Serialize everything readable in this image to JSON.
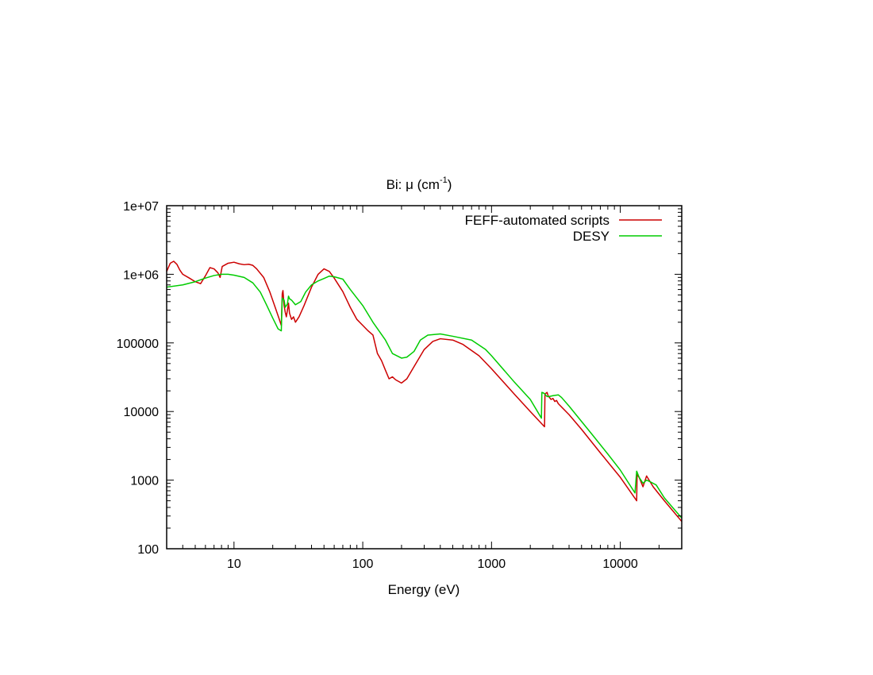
{
  "chart_data": {
    "type": "line",
    "title": "Bi: μ (cm",
    "title_sup": "-1",
    "title_tail": ")",
    "xlabel": "Energy (eV)",
    "ylabel": "",
    "xscale": "log",
    "yscale": "log",
    "xlim": [
      3,
      30000
    ],
    "ylim": [
      100,
      10000000
    ],
    "grid": false,
    "legend_position": "top-right",
    "x_tick_labels": [
      {
        "value": 10,
        "label": "10"
      },
      {
        "value": 100,
        "label": "100"
      },
      {
        "value": 1000,
        "label": "1000"
      },
      {
        "value": 10000,
        "label": "10000"
      }
    ],
    "y_tick_labels": [
      {
        "value": 100,
        "label": "100"
      },
      {
        "value": 1000,
        "label": "1000"
      },
      {
        "value": 10000,
        "label": "10000"
      },
      {
        "value": 100000,
        "label": "100000"
      },
      {
        "value": 1000000,
        "label": "1e+06"
      },
      {
        "value": 10000000,
        "label": "1e+07"
      }
    ],
    "series": [
      {
        "name": "FEFF-automated scripts",
        "color": "#cc0000",
        "points": [
          [
            3.0,
            1100000
          ],
          [
            3.2,
            1450000
          ],
          [
            3.4,
            1550000
          ],
          [
            3.6,
            1400000
          ],
          [
            3.8,
            1150000
          ],
          [
            4.0,
            1000000
          ],
          [
            4.5,
            880000
          ],
          [
            5.0,
            780000
          ],
          [
            5.5,
            730000
          ],
          [
            6.0,
            950000
          ],
          [
            6.5,
            1250000
          ],
          [
            7.0,
            1200000
          ],
          [
            7.5,
            1050000
          ],
          [
            7.8,
            900000
          ],
          [
            8.1,
            1300000
          ],
          [
            9.0,
            1450000
          ],
          [
            10.0,
            1500000
          ],
          [
            11.0,
            1420000
          ],
          [
            12.0,
            1380000
          ],
          [
            13.0,
            1400000
          ],
          [
            14.0,
            1350000
          ],
          [
            15.0,
            1200000
          ],
          [
            17.0,
            900000
          ],
          [
            19.0,
            550000
          ],
          [
            21.0,
            320000
          ],
          [
            22.5,
            220000
          ],
          [
            23.3,
            180000
          ],
          [
            23.7,
            520000
          ],
          [
            24.0,
            580000
          ],
          [
            24.5,
            350000
          ],
          [
            25.0,
            280000
          ],
          [
            25.5,
            240000
          ],
          [
            26.0,
            300000
          ],
          [
            26.5,
            380000
          ],
          [
            27.0,
            270000
          ],
          [
            28.0,
            220000
          ],
          [
            29.0,
            240000
          ],
          [
            30.0,
            200000
          ],
          [
            32.0,
            240000
          ],
          [
            35.0,
            350000
          ],
          [
            40.0,
            650000
          ],
          [
            45.0,
            1000000
          ],
          [
            50.0,
            1200000
          ],
          [
            55.0,
            1100000
          ],
          [
            60.0,
            880000
          ],
          [
            70.0,
            560000
          ],
          [
            80.0,
            330000
          ],
          [
            90.0,
            220000
          ],
          [
            100.0,
            180000
          ],
          [
            110.0,
            150000
          ],
          [
            120.0,
            130000
          ],
          [
            130.0,
            70000
          ],
          [
            140.0,
            55000
          ],
          [
            150.0,
            40000
          ],
          [
            160.0,
            30000
          ],
          [
            170.0,
            32000
          ],
          [
            180.0,
            29000
          ],
          [
            200.0,
            26000
          ],
          [
            220.0,
            30000
          ],
          [
            250.0,
            45000
          ],
          [
            300.0,
            80000
          ],
          [
            350.0,
            105000
          ],
          [
            400.0,
            115000
          ],
          [
            500.0,
            110000
          ],
          [
            600.0,
            95000
          ],
          [
            800.0,
            65000
          ],
          [
            1000.0,
            42000
          ],
          [
            1500.0,
            18000
          ],
          [
            2000.0,
            10000
          ],
          [
            2580.0,
            6000
          ],
          [
            2600.0,
            18000
          ],
          [
            2700.0,
            19000
          ],
          [
            2750.0,
            17000
          ],
          [
            2900.0,
            15000
          ],
          [
            3000.0,
            15500
          ],
          [
            3100.0,
            14000
          ],
          [
            3200.0,
            14500
          ],
          [
            3300.0,
            13000
          ],
          [
            4000.0,
            9000
          ],
          [
            5000.0,
            5500
          ],
          [
            7000.0,
            2500
          ],
          [
            10000.0,
            1100
          ],
          [
            13400.0,
            500
          ],
          [
            13500.0,
            1200
          ],
          [
            14000.0,
            1100
          ],
          [
            15000.0,
            800
          ],
          [
            16000.0,
            1150
          ],
          [
            18000.0,
            800
          ],
          [
            22000.0,
            500
          ],
          [
            30000.0,
            250
          ]
        ]
      },
      {
        "name": "DESY",
        "color": "#00cc00",
        "points": [
          [
            3.0,
            650000
          ],
          [
            4.0,
            700000
          ],
          [
            5.0,
            780000
          ],
          [
            6.0,
            880000
          ],
          [
            7.0,
            960000
          ],
          [
            8.0,
            1000000
          ],
          [
            9.0,
            1000000
          ],
          [
            10.0,
            970000
          ],
          [
            12.0,
            900000
          ],
          [
            14.0,
            750000
          ],
          [
            16.0,
            550000
          ],
          [
            18.0,
            350000
          ],
          [
            20.0,
            230000
          ],
          [
            22.0,
            160000
          ],
          [
            23.3,
            150000
          ],
          [
            23.7,
            450000
          ],
          [
            24.5,
            420000
          ],
          [
            25.0,
            330000
          ],
          [
            26.0,
            370000
          ],
          [
            26.5,
            480000
          ],
          [
            27.0,
            440000
          ],
          [
            28.0,
            420000
          ],
          [
            30.0,
            360000
          ],
          [
            33.0,
            400000
          ],
          [
            36.0,
            550000
          ],
          [
            40.0,
            700000
          ],
          [
            45.0,
            800000
          ],
          [
            50.0,
            870000
          ],
          [
            55.0,
            940000
          ],
          [
            60.0,
            920000
          ],
          [
            70.0,
            850000
          ],
          [
            80.0,
            600000
          ],
          [
            100.0,
            350000
          ],
          [
            120.0,
            200000
          ],
          [
            150.0,
            110000
          ],
          [
            170.0,
            70000
          ],
          [
            200.0,
            60000
          ],
          [
            220.0,
            62000
          ],
          [
            250.0,
            75000
          ],
          [
            280.0,
            110000
          ],
          [
            320.0,
            130000
          ],
          [
            400.0,
            135000
          ],
          [
            500.0,
            125000
          ],
          [
            700.0,
            110000
          ],
          [
            900.0,
            80000
          ],
          [
            1000.0,
            65000
          ],
          [
            1500.0,
            27000
          ],
          [
            2000.0,
            15000
          ],
          [
            2440.0,
            8000
          ],
          [
            2460.0,
            19000
          ],
          [
            2550.0,
            18500
          ],
          [
            2700.0,
            16500
          ],
          [
            2800.0,
            16500
          ],
          [
            3000.0,
            17000
          ],
          [
            3300.0,
            17500
          ],
          [
            3500.0,
            16000
          ],
          [
            4000.0,
            12000
          ],
          [
            6000.0,
            4700
          ],
          [
            8000.0,
            2400
          ],
          [
            10000.0,
            1400
          ],
          [
            13000.0,
            650
          ],
          [
            13400.0,
            1350
          ],
          [
            14000.0,
            1100
          ],
          [
            15000.0,
            900
          ],
          [
            16000.0,
            1000
          ],
          [
            17000.0,
            950
          ],
          [
            19000.0,
            850
          ],
          [
            22000.0,
            550
          ],
          [
            30000.0,
            280
          ]
        ]
      }
    ]
  }
}
